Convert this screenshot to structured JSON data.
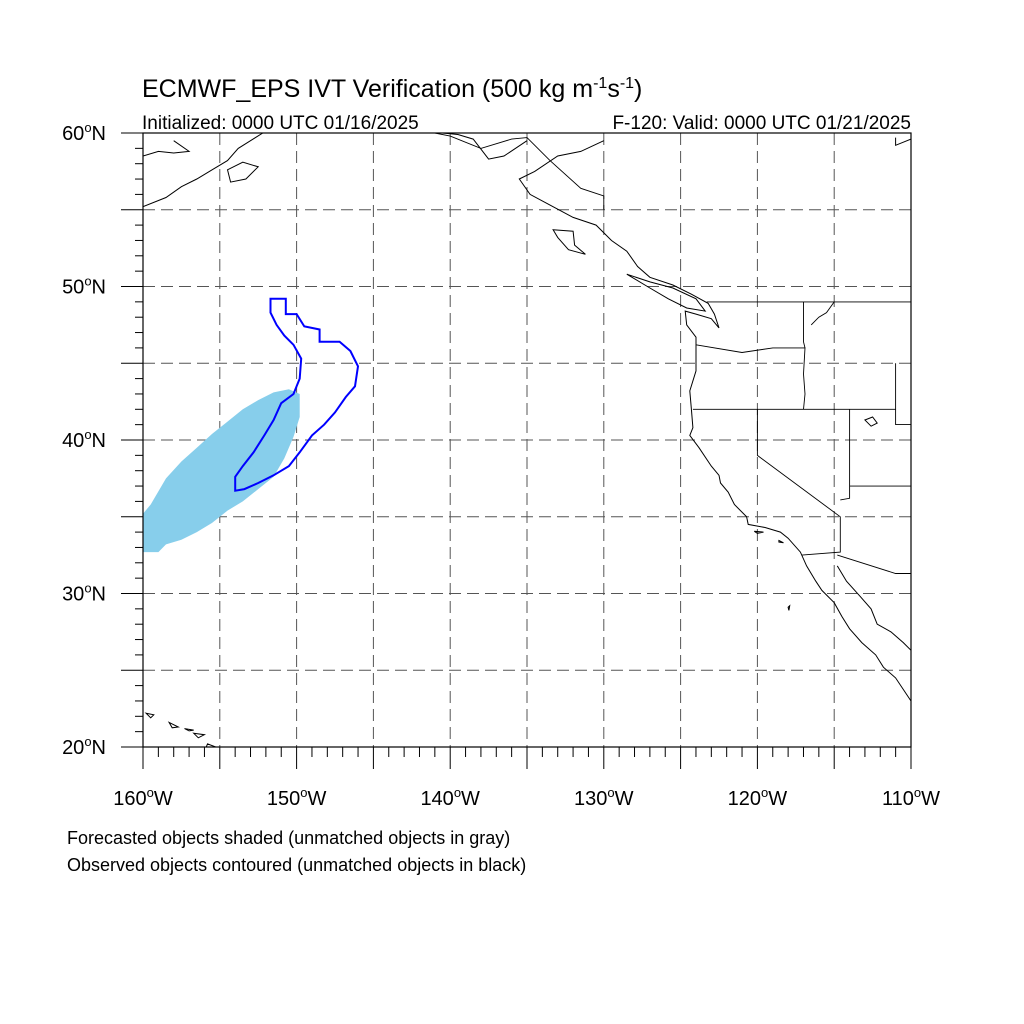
{
  "figure": {
    "title_main": "ECMWF_EPS IVT Verification (500 kg m",
    "title_unit_sup1": "-1",
    "title_unit_mid": "s",
    "title_unit_sup2": "-1",
    "title_close": ")",
    "initialized": "Initialized: 0000 UTC 01/16/2025",
    "valid": "F-120: Valid: 0000 UTC 01/21/2025",
    "caption_line1": "Forecasted objects shaded (unmatched objects in gray)",
    "caption_line2": "Observed objects contoured (unmatched objects in black)"
  },
  "map": {
    "region": "Northeast Pacific / western North America",
    "lon_range": [
      -160,
      -110
    ],
    "lat_range": [
      20,
      60
    ],
    "lat_ticks": [
      {
        "value": 20,
        "label": "20",
        "hemi": "N"
      },
      {
        "value": 30,
        "label": "30",
        "hemi": "N"
      },
      {
        "value": 40,
        "label": "40",
        "hemi": "N"
      },
      {
        "value": 50,
        "label": "50",
        "hemi": "N"
      },
      {
        "value": 60,
        "label": "60",
        "hemi": "N"
      }
    ],
    "lon_ticks": [
      {
        "value": -160,
        "label": "160",
        "hemi": "W"
      },
      {
        "value": -150,
        "label": "150",
        "hemi": "W"
      },
      {
        "value": -140,
        "label": "140",
        "hemi": "W"
      },
      {
        "value": -130,
        "label": "130",
        "hemi": "W"
      },
      {
        "value": -120,
        "label": "120",
        "hemi": "W"
      },
      {
        "value": -110,
        "label": "110",
        "hemi": "W"
      }
    ],
    "degree_symbol": "o",
    "grid_dashed": true,
    "gridlines_lat": [
      25,
      30,
      35,
      40,
      45,
      50,
      55
    ],
    "gridlines_lon": [
      -155,
      -150,
      -145,
      -140,
      -135,
      -130,
      -125,
      -120,
      -115
    ],
    "colors": {
      "forecast_matched_fill": "#87ceeb",
      "observed_matched_contour": "#0000ff",
      "coastline": "#000000",
      "grid": "#555555"
    },
    "forecast_object_outline": [
      [
        -160.0,
        32.7
      ],
      [
        -159.0,
        32.7
      ],
      [
        -158.5,
        33.2
      ],
      [
        -157.5,
        33.5
      ],
      [
        -156.5,
        34.0
      ],
      [
        -155.5,
        34.6
      ],
      [
        -154.5,
        35.4
      ],
      [
        -153.5,
        36.0
      ],
      [
        -152.5,
        36.8
      ],
      [
        -151.5,
        37.6
      ],
      [
        -150.8,
        38.8
      ],
      [
        -150.2,
        40.2
      ],
      [
        -149.8,
        41.5
      ],
      [
        -149.8,
        43.0
      ],
      [
        -150.5,
        43.3
      ],
      [
        -151.5,
        43.1
      ],
      [
        -152.5,
        42.6
      ],
      [
        -153.5,
        42.0
      ],
      [
        -154.5,
        41.2
      ],
      [
        -155.5,
        40.4
      ],
      [
        -156.5,
        39.5
      ],
      [
        -157.5,
        38.6
      ],
      [
        -158.5,
        37.5
      ],
      [
        -159.5,
        35.8
      ],
      [
        -160.0,
        35.2
      ]
    ],
    "observed_object_contour": [
      [
        -151.7,
        49.2
      ],
      [
        -150.7,
        49.2
      ],
      [
        -150.7,
        48.2
      ],
      [
        -150.0,
        48.2
      ],
      [
        -149.5,
        47.4
      ],
      [
        -148.5,
        47.2
      ],
      [
        -148.5,
        46.4
      ],
      [
        -147.2,
        46.4
      ],
      [
        -146.5,
        45.8
      ],
      [
        -146.0,
        44.8
      ],
      [
        -146.2,
        43.5
      ],
      [
        -146.8,
        42.8
      ],
      [
        -147.5,
        41.8
      ],
      [
        -148.2,
        41.0
      ],
      [
        -149.0,
        40.3
      ],
      [
        -149.8,
        39.2
      ],
      [
        -150.5,
        38.3
      ],
      [
        -151.5,
        37.7
      ],
      [
        -152.5,
        37.2
      ],
      [
        -153.4,
        36.8
      ],
      [
        -154.0,
        36.7
      ],
      [
        -154.0,
        37.6
      ],
      [
        -153.5,
        38.3
      ],
      [
        -152.8,
        39.2
      ],
      [
        -152.1,
        40.3
      ],
      [
        -151.5,
        41.3
      ],
      [
        -151.0,
        42.4
      ],
      [
        -150.2,
        43.0
      ],
      [
        -149.8,
        44.0
      ],
      [
        -149.7,
        45.3
      ],
      [
        -150.2,
        46.2
      ],
      [
        -150.8,
        46.8
      ],
      [
        -151.3,
        47.5
      ],
      [
        -151.7,
        48.3
      ],
      [
        -151.7,
        49.2
      ]
    ],
    "coastlines": [
      [
        [
          -130.0,
          59.5
        ],
        [
          -131.5,
          58.8
        ],
        [
          -133.0,
          58.5
        ],
        [
          -134.5,
          57.5
        ],
        [
          -135.5,
          57.0
        ],
        [
          -134.8,
          56.0
        ],
        [
          -133.5,
          55.3
        ],
        [
          -132.0,
          54.5
        ],
        [
          -130.5,
          54.0
        ],
        [
          -129.5,
          53.0
        ],
        [
          -128.5,
          52.3
        ],
        [
          -127.8,
          51.3
        ],
        [
          -127.0,
          50.6
        ],
        [
          -125.5,
          50.1
        ],
        [
          -124.3,
          49.5
        ],
        [
          -123.2,
          48.9
        ],
        [
          -122.8,
          48.2
        ],
        [
          -122.5,
          47.3
        ],
        [
          -123.0,
          47.9
        ],
        [
          -124.0,
          48.2
        ],
        [
          -124.7,
          48.4
        ],
        [
          -124.6,
          47.5
        ],
        [
          -124.0,
          46.7
        ],
        [
          -124.0,
          46.0
        ],
        [
          -124.0,
          44.5
        ],
        [
          -124.4,
          43.2
        ],
        [
          -124.3,
          42.0
        ],
        [
          -124.2,
          40.8
        ],
        [
          -124.4,
          40.3
        ],
        [
          -123.8,
          39.5
        ],
        [
          -123.0,
          38.3
        ],
        [
          -122.5,
          37.7
        ],
        [
          -122.4,
          37.2
        ],
        [
          -121.9,
          36.6
        ],
        [
          -121.5,
          35.8
        ],
        [
          -120.7,
          35.0
        ],
        [
          -120.6,
          34.5
        ],
        [
          -119.5,
          34.3
        ],
        [
          -118.5,
          34.0
        ],
        [
          -118.0,
          33.6
        ],
        [
          -117.2,
          32.7
        ],
        [
          -116.8,
          31.8
        ],
        [
          -116.2,
          30.8
        ],
        [
          -115.8,
          30.2
        ],
        [
          -115.0,
          29.4
        ],
        [
          -114.5,
          28.5
        ],
        [
          -114.0,
          27.7
        ],
        [
          -113.2,
          26.8
        ],
        [
          -112.3,
          26.0
        ],
        [
          -111.8,
          25.2
        ],
        [
          -111.0,
          24.5
        ],
        [
          -110.0,
          23.0
        ]
      ],
      [
        [
          -114.8,
          31.8
        ],
        [
          -114.2,
          30.8
        ],
        [
          -113.3,
          29.8
        ],
        [
          -112.6,
          29.0
        ],
        [
          -112.2,
          28.0
        ],
        [
          -111.3,
          27.5
        ],
        [
          -110.5,
          26.8
        ],
        [
          -110.0,
          26.3
        ]
      ],
      [
        [
          -135.0,
          59.5
        ],
        [
          -136.5,
          58.5
        ],
        [
          -137.5,
          58.3
        ],
        [
          -138.5,
          59.6
        ],
        [
          -139.5,
          59.9
        ],
        [
          -140.5,
          60.0
        ]
      ],
      [
        [
          -110.0,
          59.6
        ],
        [
          -111.0,
          59.2
        ],
        [
          -111.0,
          59.7
        ]
      ],
      [
        [
          -160.0,
          58.5
        ],
        [
          -159.0,
          58.8
        ],
        [
          -158.0,
          58.7
        ],
        [
          -157.0,
          58.8
        ],
        [
          -158.0,
          59.5
        ]
      ],
      [
        [
          -160.0,
          55.2
        ],
        [
          -158.5,
          55.8
        ],
        [
          -157.5,
          56.5
        ],
        [
          -156.5,
          57.0
        ],
        [
          -155.5,
          57.6
        ],
        [
          -154.5,
          58.2
        ],
        [
          -153.8,
          59.0
        ],
        [
          -153.0,
          59.5
        ],
        [
          -152.2,
          60.0
        ]
      ]
    ],
    "islands": [
      [
        [
          -154.5,
          57.6
        ],
        [
          -153.5,
          58.1
        ],
        [
          -152.5,
          57.8
        ],
        [
          -153.3,
          57.0
        ],
        [
          -154.3,
          56.8
        ],
        [
          -154.5,
          57.6
        ]
      ],
      [
        [
          -133.3,
          53.7
        ],
        [
          -132.0,
          53.6
        ],
        [
          -131.9,
          52.7
        ],
        [
          -131.2,
          52.1
        ],
        [
          -132.3,
          52.4
        ],
        [
          -133.0,
          53.2
        ],
        [
          -133.3,
          53.7
        ]
      ],
      [
        [
          -128.5,
          50.8
        ],
        [
          -127.0,
          50.3
        ],
        [
          -125.5,
          49.9
        ],
        [
          -124.0,
          49.2
        ],
        [
          -123.4,
          48.4
        ],
        [
          -124.6,
          48.6
        ],
        [
          -125.8,
          49.2
        ],
        [
          -127.0,
          49.9
        ],
        [
          -128.5,
          50.8
        ]
      ],
      [
        [
          -118.6,
          33.45
        ],
        [
          -118.3,
          33.3
        ],
        [
          -118.6,
          33.35
        ],
        [
          -118.6,
          33.45
        ]
      ],
      [
        [
          -120.2,
          34.05
        ],
        [
          -119.6,
          34.0
        ],
        [
          -120.0,
          33.92
        ],
        [
          -120.2,
          34.05
        ]
      ],
      [
        [
          -118.0,
          29.1
        ],
        [
          -117.9,
          29.2
        ],
        [
          -117.95,
          28.9
        ],
        [
          -118.0,
          29.1
        ]
      ],
      [
        [
          -155.8,
          20.2
        ],
        [
          -155.0,
          19.9
        ],
        [
          -154.8,
          19.5
        ],
        [
          -155.6,
          19.0
        ],
        [
          -156.0,
          19.7
        ],
        [
          -155.8,
          20.2
        ]
      ],
      [
        [
          -156.7,
          20.9
        ],
        [
          -156.0,
          20.8
        ],
        [
          -156.4,
          20.6
        ],
        [
          -156.7,
          20.9
        ]
      ],
      [
        [
          -157.3,
          21.2
        ],
        [
          -156.7,
          21.1
        ],
        [
          -157.0,
          21.05
        ],
        [
          -157.3,
          21.2
        ]
      ],
      [
        [
          -158.3,
          21.6
        ],
        [
          -157.7,
          21.3
        ],
        [
          -158.1,
          21.25
        ],
        [
          -158.3,
          21.6
        ]
      ],
      [
        [
          -159.8,
          22.2
        ],
        [
          -159.3,
          22.1
        ],
        [
          -159.5,
          21.9
        ],
        [
          -159.8,
          22.2
        ]
      ],
      [
        [
          -113.0,
          41.3
        ],
        [
          -112.5,
          41.5
        ],
        [
          -112.2,
          41.1
        ],
        [
          -112.6,
          40.9
        ],
        [
          -113.0,
          41.3
        ]
      ]
    ],
    "borders": [
      [
        [
          -123.3,
          49.0
        ],
        [
          -110.0,
          49.0
        ]
      ],
      [
        [
          -141.0,
          60.0
        ],
        [
          -140.0,
          59.8
        ],
        [
          -138.0,
          59.0
        ],
        [
          -136.0,
          59.6
        ],
        [
          -135.0,
          59.7
        ],
        [
          -133.5,
          58.2
        ],
        [
          -131.5,
          56.4
        ],
        [
          -130.0,
          55.9
        ],
        [
          -130.0,
          55.0
        ]
      ],
      [
        [
          -124.0,
          46.2
        ],
        [
          -121.0,
          45.7
        ],
        [
          -119.0,
          46.0
        ],
        [
          -116.9,
          46.0
        ],
        [
          -117.0,
          44.3
        ],
        [
          -116.9,
          43.0
        ],
        [
          -117.0,
          42.0
        ]
      ],
      [
        [
          -117.0,
          49.0
        ],
        [
          -117.0,
          46.4
        ],
        [
          -116.9,
          46.0
        ]
      ],
      [
        [
          -124.2,
          42.0
        ],
        [
          -111.0,
          42.0
        ]
      ],
      [
        [
          -120.0,
          42.0
        ],
        [
          -120.0,
          39.0
        ],
        [
          -114.6,
          35.0
        ],
        [
          -114.6,
          32.7
        ],
        [
          -117.1,
          32.5
        ]
      ],
      [
        [
          -114.0,
          42.0
        ],
        [
          -114.0,
          36.2
        ],
        [
          -114.6,
          36.1
        ]
      ],
      [
        [
          -111.0,
          45.0
        ],
        [
          -111.0,
          41.0
        ],
        [
          -110.0,
          41.0
        ]
      ],
      [
        [
          -114.0,
          37.0
        ],
        [
          -110.0,
          37.0
        ]
      ],
      [
        [
          -114.8,
          32.5
        ],
        [
          -111.0,
          31.3
        ],
        [
          -110.0,
          31.3
        ]
      ],
      [
        [
          -116.5,
          47.5
        ],
        [
          -116.0,
          48.0
        ],
        [
          -115.5,
          48.3
        ],
        [
          -115.0,
          49.0
        ]
      ]
    ]
  }
}
